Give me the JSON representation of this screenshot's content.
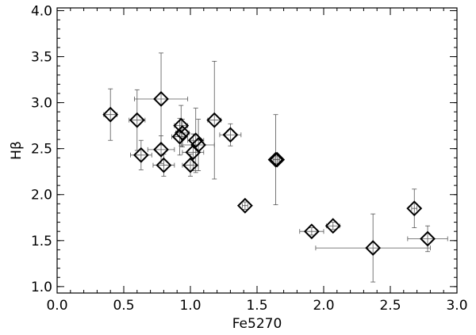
{
  "chart_data": {
    "type": "scatter",
    "xlabel": "Fe5270",
    "ylabel": "Hβ",
    "xlim": [
      0.0,
      3.0
    ],
    "ylim": [
      0.93,
      4.03
    ],
    "xticks": [
      "0.0",
      "0.5",
      "1.0",
      "1.5",
      "2.0",
      "2.5",
      "3.0"
    ],
    "yticks": [
      "1.0",
      "1.5",
      "2.0",
      "2.5",
      "3.0",
      "3.5",
      "4.0"
    ],
    "x_tick_values": [
      0.0,
      0.5,
      1.0,
      1.5,
      2.0,
      2.5,
      3.0
    ],
    "y_tick_values": [
      1.0,
      1.5,
      2.0,
      2.5,
      3.0,
      3.5,
      4.0
    ],
    "marker": "diamond-open",
    "grid": false,
    "points": [
      {
        "x": 0.4,
        "y": 2.87,
        "xerr": 0.05,
        "yerr": 0.28
      },
      {
        "x": 0.6,
        "y": 2.81,
        "xerr": 0.06,
        "yerr": 0.33
      },
      {
        "x": 0.63,
        "y": 2.43,
        "xerr": 0.08,
        "yerr": 0.16
      },
      {
        "x": 0.78,
        "y": 3.04,
        "xerr": 0.2,
        "yerr": 0.5
      },
      {
        "x": 0.78,
        "y": 2.49,
        "xerr": 0.1,
        "yerr": 0.15
      },
      {
        "x": 0.8,
        "y": 2.32,
        "xerr": 0.08,
        "yerr": 0.12
      },
      {
        "x": 0.92,
        "y": 2.63,
        "xerr": 0.06,
        "yerr": 0.2
      },
      {
        "x": 0.93,
        "y": 2.75,
        "xerr": 0.05,
        "yerr": 0.22
      },
      {
        "x": 0.94,
        "y": 2.67,
        "xerr": 0.05,
        "yerr": 0.15
      },
      {
        "x": 1.0,
        "y": 2.32,
        "xerr": 0.06,
        "yerr": 0.12
      },
      {
        "x": 1.02,
        "y": 2.46,
        "xerr": 0.08,
        "yerr": 0.2
      },
      {
        "x": 1.04,
        "y": 2.59,
        "xerr": 0.06,
        "yerr": 0.35
      },
      {
        "x": 1.06,
        "y": 2.54,
        "xerr": 0.12,
        "yerr": 0.28
      },
      {
        "x": 1.18,
        "y": 2.81,
        "xerr": 0.05,
        "yerr": 0.64
      },
      {
        "x": 1.3,
        "y": 2.65,
        "xerr": 0.08,
        "yerr": 0.12
      },
      {
        "x": 1.41,
        "y": 1.88,
        "xerr": 0.02,
        "yerr": 0.04
      },
      {
        "x": 1.64,
        "y": 2.38,
        "xerr": 0.02,
        "yerr": 0.49
      },
      {
        "x": 1.65,
        "y": 2.38,
        "xerr": 0.02,
        "yerr": 0.04
      },
      {
        "x": 1.91,
        "y": 1.6,
        "xerr": 0.09,
        "yerr": 0.04
      },
      {
        "x": 2.07,
        "y": 1.66,
        "xerr": 0.05,
        "yerr": 0.04
      },
      {
        "x": 2.37,
        "y": 1.42,
        "xerr": 0.43,
        "yerr": 0.37
      },
      {
        "x": 2.68,
        "y": 1.85,
        "xerr": 0.02,
        "yerr": 0.21
      },
      {
        "x": 2.78,
        "y": 1.52,
        "xerr": 0.15,
        "yerr": 0.14
      }
    ]
  }
}
